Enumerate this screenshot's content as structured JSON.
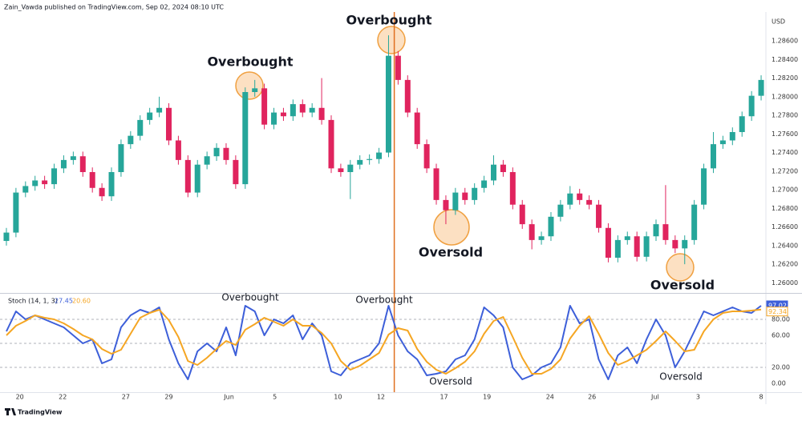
{
  "header": "Zain_Vawda published on TradingView.com, Sep 02, 2024 08:10 UTC",
  "footer": "TradingView",
  "chart_data": [
    {
      "type": "candlestick",
      "currency": "USD",
      "annotations": [
        "Overbought",
        "Overbought",
        "Oversold",
        "Oversold"
      ],
      "up_color": "#26a69a",
      "down_color": "#e0245e",
      "vline": 40.6,
      "vline_color": "#e07020",
      "xlim": [
        -0.67,
        79.5
      ],
      "ylim": [
        1.259,
        1.2891
      ],
      "yticks": [
        {
          "value": 1.26,
          "label": "1.26000"
        },
        {
          "value": 1.262,
          "label": "1.26200"
        },
        {
          "value": 1.264,
          "label": "1.26400"
        },
        {
          "value": 1.266,
          "label": "1.26600"
        },
        {
          "value": 1.268,
          "label": "1.26800"
        },
        {
          "value": 1.27,
          "label": "1.27000"
        },
        {
          "value": 1.272,
          "label": "1.27200"
        },
        {
          "value": 1.274,
          "label": "1.27400"
        },
        {
          "value": 1.276,
          "label": "1.27600"
        },
        {
          "value": 1.278,
          "label": "1.27800"
        },
        {
          "value": 1.28,
          "label": "1.28000"
        },
        {
          "value": 1.282,
          "label": "1.28200"
        },
        {
          "value": 1.284,
          "label": "1.28400"
        },
        {
          "value": 1.286,
          "label": "1.28600"
        }
      ],
      "open": [
        1.2645,
        1.2654,
        1.2697,
        1.2704,
        1.271,
        1.2706,
        1.2723,
        1.2732,
        1.2736,
        1.2719,
        1.2702,
        1.2693,
        1.2719,
        1.2749,
        1.2758,
        1.2775,
        1.2783,
        1.2788,
        1.2753,
        1.2732,
        1.2697,
        1.2727,
        1.2736,
        1.2745,
        1.2732,
        1.2706,
        1.2805,
        1.2809,
        1.277,
        1.2783,
        1.2779,
        1.2792,
        1.2783,
        1.2788,
        1.2775,
        1.2723,
        1.2719,
        1.2727,
        1.2732,
        1.2733,
        1.274,
        1.2844,
        1.2818,
        1.2783,
        1.2749,
        1.2723,
        1.2689,
        1.2678,
        1.2697,
        1.2689,
        1.2702,
        1.271,
        1.2727,
        1.2719,
        1.2684,
        1.2663,
        1.2646,
        1.265,
        1.2671,
        1.2684,
        1.2696,
        1.2689,
        1.2684,
        1.2659,
        1.2627,
        1.2646,
        1.265,
        1.2628,
        1.265,
        1.2663,
        1.2646,
        1.2637,
        1.2646,
        1.2684,
        1.2723,
        1.2749,
        1.2753,
        1.2762,
        1.2779,
        1.2801
      ],
      "high": [
        1.2659,
        1.2702,
        1.2709,
        1.2715,
        1.2715,
        1.2728,
        1.2737,
        1.2741,
        1.2741,
        1.2724,
        1.2707,
        1.2724,
        1.2754,
        1.2763,
        1.278,
        1.2788,
        1.28,
        1.2793,
        1.2758,
        1.2737,
        1.2732,
        1.2741,
        1.275,
        1.275,
        1.2737,
        1.281,
        1.2818,
        1.2814,
        1.2788,
        1.2788,
        1.2797,
        1.2797,
        1.2793,
        1.282,
        1.278,
        1.2728,
        1.2732,
        1.2737,
        1.2738,
        1.2745,
        1.2866,
        1.2849,
        1.2823,
        1.2788,
        1.2754,
        1.2728,
        1.2694,
        1.2702,
        1.2702,
        1.2707,
        1.2715,
        1.2737,
        1.2732,
        1.2724,
        1.2689,
        1.2668,
        1.2655,
        1.2676,
        1.2689,
        1.2704,
        1.2701,
        1.2694,
        1.2689,
        1.2664,
        1.2651,
        1.2655,
        1.2655,
        1.2655,
        1.2668,
        1.2705,
        1.2651,
        1.2651,
        1.2689,
        1.2728,
        1.2762,
        1.2758,
        1.2767,
        1.2784,
        1.2806,
        1.2823
      ],
      "low": [
        1.264,
        1.2649,
        1.2692,
        1.2699,
        1.2701,
        1.2701,
        1.2718,
        1.2727,
        1.2714,
        1.2697,
        1.2688,
        1.2688,
        1.2714,
        1.2744,
        1.2753,
        1.277,
        1.2778,
        1.2748,
        1.2727,
        1.2692,
        1.2692,
        1.2722,
        1.2731,
        1.2727,
        1.2701,
        1.2701,
        1.28,
        1.2765,
        1.2765,
        1.2774,
        1.2774,
        1.2778,
        1.2778,
        1.277,
        1.2718,
        1.2714,
        1.269,
        1.2722,
        1.2727,
        1.2728,
        1.2735,
        1.2813,
        1.2778,
        1.2744,
        1.2718,
        1.2684,
        1.2663,
        1.2673,
        1.2684,
        1.2684,
        1.2697,
        1.2705,
        1.2714,
        1.2679,
        1.2658,
        1.2636,
        1.2641,
        1.2645,
        1.2666,
        1.2679,
        1.2684,
        1.2679,
        1.2654,
        1.2622,
        1.2622,
        1.2641,
        1.2623,
        1.2623,
        1.2645,
        1.2641,
        1.2632,
        1.262,
        1.2641,
        1.2679,
        1.2718,
        1.2744,
        1.2748,
        1.2757,
        1.2774,
        1.2796
      ],
      "close": [
        1.2654,
        1.2697,
        1.2704,
        1.271,
        1.2706,
        1.2723,
        1.2732,
        1.2736,
        1.2719,
        1.2702,
        1.2693,
        1.2719,
        1.2749,
        1.2758,
        1.2775,
        1.2783,
        1.2788,
        1.2753,
        1.2732,
        1.2697,
        1.2727,
        1.2736,
        1.2745,
        1.2732,
        1.2706,
        1.2805,
        1.2809,
        1.277,
        1.2783,
        1.2779,
        1.2792,
        1.2783,
        1.2788,
        1.2775,
        1.2723,
        1.2719,
        1.2727,
        1.2732,
        1.2733,
        1.274,
        1.2844,
        1.2818,
        1.2783,
        1.2749,
        1.2723,
        1.2689,
        1.2678,
        1.2697,
        1.2689,
        1.2702,
        1.271,
        1.2727,
        1.2719,
        1.2684,
        1.2663,
        1.2646,
        1.265,
        1.2671,
        1.2684,
        1.2696,
        1.2689,
        1.2684,
        1.2659,
        1.2627,
        1.2646,
        1.265,
        1.2628,
        1.265,
        1.2663,
        1.2646,
        1.2637,
        1.2646,
        1.2684,
        1.2723,
        1.2749,
        1.2753,
        1.2762,
        1.2779,
        1.2801,
        1.2818
      ]
    },
    {
      "type": "line",
      "title": "Stoch (14, 1, 3)",
      "legend_values": [
        {
          "value": 27.45,
          "label": "27.45"
        },
        {
          "value": 20.6,
          "label": "20.60"
        }
      ],
      "annotations": [
        "Overbought",
        "Overbought",
        "Oversold",
        "Oversold"
      ],
      "xlim": [
        -0.67,
        79.5
      ],
      "ylim": [
        -11,
        111
      ],
      "yticks": [
        {
          "value": 0,
          "label": "0.00"
        },
        {
          "value": 20,
          "label": "20.00"
        },
        {
          "value": 60,
          "label": "60.00"
        },
        {
          "value": 80,
          "label": "80.00"
        }
      ],
      "levels": [
        20,
        50,
        80
      ],
      "xticks": [
        {
          "value": 1.4,
          "label": "20"
        },
        {
          "value": 5.9,
          "label": "22"
        },
        {
          "value": 12.5,
          "label": "27"
        },
        {
          "value": 17,
          "label": "29"
        },
        {
          "value": 23.3,
          "label": "Jun"
        },
        {
          "value": 28.1,
          "label": "5"
        },
        {
          "value": 34.7,
          "label": "10"
        },
        {
          "value": 39.2,
          "label": "12"
        },
        {
          "value": 45.8,
          "label": "17"
        },
        {
          "value": 50.3,
          "label": "19"
        },
        {
          "value": 56.9,
          "label": "24"
        },
        {
          "value": 61.3,
          "label": "26"
        },
        {
          "value": 67.9,
          "label": "Jul"
        },
        {
          "value": 72.4,
          "label": "3"
        },
        {
          "value": 79,
          "label": "8"
        }
      ],
      "series": [
        {
          "color": "#3d5fd9",
          "last_value_label": "97.02",
          "values": [
            65,
            90,
            80,
            85,
            80,
            75,
            70,
            60,
            50,
            55,
            25,
            30,
            70,
            85,
            92,
            88,
            95,
            55,
            25,
            5,
            40,
            50,
            40,
            70,
            35,
            97,
            90,
            60,
            80,
            75,
            85,
            55,
            75,
            60,
            15,
            10,
            25,
            30,
            35,
            50,
            97,
            60,
            40,
            30,
            10,
            12,
            15,
            30,
            35,
            55,
            95,
            85,
            70,
            20,
            5,
            10,
            20,
            25,
            45,
            97,
            75,
            80,
            30,
            5,
            35,
            45,
            25,
            55,
            80,
            60,
            20,
            40,
            65,
            90,
            85,
            90,
            95,
            90,
            88,
            97.02
          ]
        },
        {
          "color": "#f5a623",
          "last_value_label": "92.34",
          "values": [
            60,
            72,
            78,
            85,
            82,
            80,
            75,
            68,
            60,
            55,
            43,
            37,
            42,
            62,
            82,
            88,
            92,
            79,
            58,
            28,
            23,
            32,
            43,
            53,
            48,
            67,
            74,
            82,
            77,
            72,
            80,
            72,
            72,
            63,
            50,
            28,
            17,
            22,
            30,
            38,
            61,
            69,
            66,
            43,
            27,
            17,
            12,
            19,
            27,
            40,
            62,
            78,
            83,
            58,
            32,
            12,
            12,
            18,
            30,
            56,
            72,
            84,
            62,
            38,
            23,
            28,
            35,
            42,
            53,
            65,
            53,
            40,
            42,
            65,
            80,
            88,
            90,
            90,
            91,
            92.34
          ]
        }
      ]
    }
  ]
}
